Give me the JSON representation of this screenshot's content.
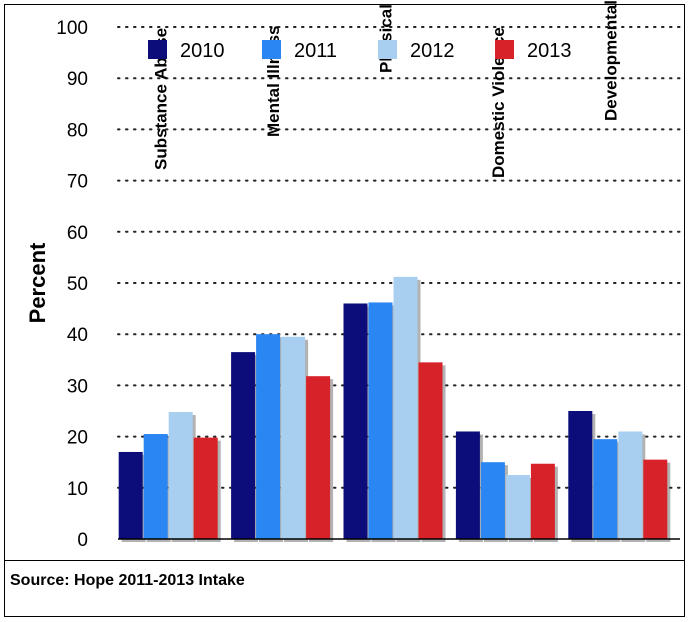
{
  "chart_data": {
    "type": "bar",
    "ylabel": "Percent",
    "ylim": [
      0,
      100
    ],
    "yticks": [
      0,
      10,
      20,
      30,
      40,
      50,
      60,
      70,
      80,
      90,
      100
    ],
    "grid": "horizontal-dotted",
    "legend_position": "top",
    "categories": [
      "Substance Abuse",
      "Mental Illness",
      "Physical Disability",
      "Domestic Violence",
      "Developmental Disability"
    ],
    "series": [
      {
        "name": "2010",
        "color": "#0c0c7a",
        "values": [
          17,
          36.5,
          46,
          21,
          25
        ]
      },
      {
        "name": "2011",
        "color": "#2a86f2",
        "values": [
          20.5,
          40,
          46.2,
          15,
          19.5
        ]
      },
      {
        "name": "2012",
        "color": "#a8cff0",
        "values": [
          24.8,
          39.5,
          51.2,
          12.5,
          21
        ]
      },
      {
        "name": "2013",
        "color": "#d8222a",
        "values": [
          19.8,
          31.8,
          34.5,
          14.7,
          15.5
        ]
      }
    ]
  },
  "source_text": "Source: Hope 2011-2013 Intake"
}
